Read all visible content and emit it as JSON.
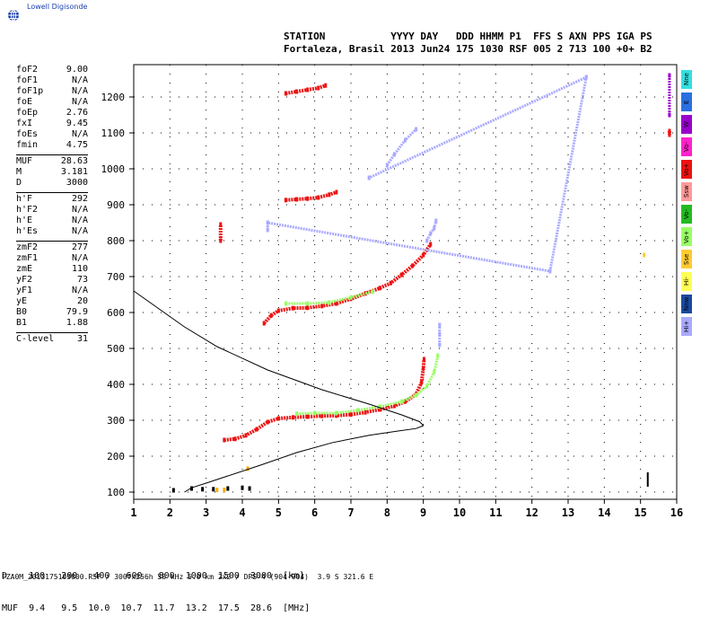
{
  "brand": {
    "logo_text": "Lowell Digisonde"
  },
  "header": {
    "line1": "STATION           YYYY DAY   DDD HHMM P1  FFS S AXN PPS IGA PS",
    "line2": "Fortaleza, Brasil 2013 Jun24 175 1030 RSF 005 2 713 100 +0+ B2"
  },
  "params": [
    {
      "label": "foF2",
      "value": "9.00"
    },
    {
      "label": "foF1",
      "value": "N/A"
    },
    {
      "label": "foF1p",
      "value": "N/A"
    },
    {
      "label": "foE",
      "value": "N/A"
    },
    {
      "label": "foEp",
      "value": "2.76"
    },
    {
      "label": "fxI",
      "value": "9.45"
    },
    {
      "label": "foEs",
      "value": "N/A"
    },
    {
      "label": "fmin",
      "value": "4.75"
    },
    {
      "sep": true
    },
    {
      "label": "MUF",
      "value": "28.63"
    },
    {
      "label": "M",
      "value": "3.181"
    },
    {
      "label": "D",
      "value": "3000"
    },
    {
      "sep": true
    },
    {
      "label": "h'F",
      "value": "292"
    },
    {
      "label": "h'F2",
      "value": "N/A"
    },
    {
      "label": "h'E",
      "value": "N/A"
    },
    {
      "label": "h'Es",
      "value": "N/A"
    },
    {
      "sep": true
    },
    {
      "label": "zmF2",
      "value": "277"
    },
    {
      "label": "zmF1",
      "value": "N/A"
    },
    {
      "label": "zmE",
      "value": "110"
    },
    {
      "label": "yF2",
      "value": "73"
    },
    {
      "label": "yF1",
      "value": "N/A"
    },
    {
      "label": "yE",
      "value": "20"
    },
    {
      "label": "B0",
      "value": "79.9"
    },
    {
      "label": "B1",
      "value": "1.88"
    },
    {
      "sep": true
    },
    {
      "label": "C-level",
      "value": "31"
    }
  ],
  "legend": [
    {
      "label": "Nne",
      "color": "#33e0e0"
    },
    {
      "label": "E",
      "color": "#2a70e0"
    },
    {
      "label": "W",
      "color": "#9900cc"
    },
    {
      "label": "Vo-",
      "color": "#ff22cc"
    },
    {
      "label": "Vo+",
      "color": "#ee1111"
    },
    {
      "label": "Ssw",
      "color": "#ff9999"
    },
    {
      "label": "Vo-",
      "color": "#22bb22"
    },
    {
      "label": "Vo+",
      "color": "#99ff66"
    },
    {
      "label": "Sse",
      "color": "#ffcc33"
    },
    {
      "label": "Hi-",
      "color": "#ffff55"
    },
    {
      "label": "Nnw",
      "color": "#1a4aa0"
    },
    {
      "label": "Hi+",
      "color": "#aaaaff"
    }
  ],
  "muf_table": {
    "line1": "D    100   200   400   600   800  1000  1500  3000  [km]",
    "line2": "MUF  9.4   9.5  10.0  10.7  11.7  13.2  17.5  28.6  [MHz]"
  },
  "footer": "FZA0M_2013175103000.RSF / 300fx256h 50 kHz 5.0 km 2x2 / DPS-4 (904-904)  3.9 S 321.6 E",
  "chart_data": {
    "type": "scatter",
    "title": "",
    "xlabel": "",
    "ylabel": "",
    "xlim": [
      1,
      16
    ],
    "ylim": [
      80,
      1290
    ],
    "x_ticks": [
      1,
      2,
      3,
      4,
      5,
      6,
      7,
      8,
      9,
      10,
      11,
      12,
      13,
      14,
      15,
      16
    ],
    "y_ticks": [
      100,
      200,
      300,
      400,
      500,
      600,
      700,
      800,
      900,
      1000,
      1100,
      1200
    ],
    "grid": true,
    "series": [
      {
        "color": "#ee1111",
        "points": [
          [
            3.5,
            245
          ],
          [
            3.8,
            248
          ],
          [
            4.1,
            258
          ],
          [
            4.4,
            275
          ],
          [
            4.7,
            295
          ],
          [
            5.0,
            305
          ],
          [
            5.4,
            308
          ],
          [
            5.8,
            310
          ],
          [
            6.2,
            312
          ],
          [
            6.6,
            313
          ],
          [
            7.0,
            316
          ],
          [
            7.4,
            322
          ],
          [
            7.8,
            330
          ],
          [
            8.2,
            340
          ],
          [
            8.5,
            352
          ],
          [
            8.8,
            372
          ],
          [
            8.95,
            405
          ],
          [
            9.0,
            445
          ],
          [
            9.02,
            470
          ]
        ]
      },
      {
        "color": "#99ff66",
        "points": [
          [
            5.5,
            318
          ],
          [
            6.0,
            320
          ],
          [
            6.6,
            320
          ],
          [
            7.2,
            328
          ],
          [
            7.8,
            338
          ],
          [
            8.4,
            352
          ],
          [
            8.8,
            370
          ],
          [
            9.1,
            395
          ],
          [
            9.3,
            435
          ],
          [
            9.4,
            480
          ]
        ]
      },
      {
        "color": "#aaaaff",
        "points": [
          [
            9.45,
            510
          ],
          [
            9.45,
            540
          ],
          [
            9.45,
            565
          ]
        ]
      },
      {
        "color": "#ee1111",
        "points": [
          [
            4.6,
            570
          ],
          [
            4.8,
            592
          ],
          [
            5.0,
            605
          ],
          [
            5.4,
            612
          ],
          [
            5.8,
            613
          ],
          [
            6.2,
            618
          ],
          [
            6.6,
            625
          ],
          [
            7.0,
            638
          ],
          [
            7.4,
            653
          ],
          [
            7.8,
            668
          ],
          [
            8.1,
            682
          ],
          [
            8.4,
            705
          ],
          [
            8.7,
            730
          ],
          [
            9.0,
            760
          ],
          [
            9.2,
            790
          ]
        ]
      },
      {
        "color": "#99ff66",
        "points": [
          [
            5.2,
            625
          ],
          [
            5.8,
            625
          ],
          [
            6.4,
            628
          ],
          [
            7.0,
            642
          ],
          [
            7.6,
            658
          ]
        ]
      },
      {
        "color": "#aaaaff",
        "points": [
          [
            9.1,
            800
          ],
          [
            9.2,
            820
          ],
          [
            9.3,
            835
          ],
          [
            9.35,
            855
          ]
        ]
      },
      {
        "color": "#ee1111",
        "points": [
          [
            5.2,
            913
          ],
          [
            5.5,
            915
          ],
          [
            5.8,
            917
          ],
          [
            6.1,
            920
          ],
          [
            6.4,
            928
          ],
          [
            6.6,
            935
          ]
        ]
      },
      {
        "color": "#ee1111",
        "points": [
          [
            5.2,
            1210
          ],
          [
            5.5,
            1215
          ],
          [
            5.8,
            1220
          ],
          [
            6.1,
            1225
          ],
          [
            6.3,
            1232
          ]
        ]
      },
      {
        "color": "#aaaaff",
        "points": [
          [
            8.0,
            1010
          ],
          [
            8.2,
            1040
          ],
          [
            8.5,
            1080
          ],
          [
            8.8,
            1110
          ]
        ]
      },
      {
        "color": "#ee1111",
        "points": [
          [
            3.4,
            800
          ],
          [
            3.4,
            845
          ]
        ]
      },
      {
        "color": "#aaaaff",
        "points": [
          [
            4.7,
            830
          ],
          [
            4.7,
            850
          ],
          [
            12.5,
            715
          ],
          [
            13.5,
            1255
          ],
          [
            7.5,
            975
          ]
        ]
      },
      {
        "color": "#000000",
        "points": [
          [
            2.1,
            105
          ],
          [
            2.6,
            110
          ],
          [
            2.9,
            108
          ],
          [
            3.2,
            108
          ],
          [
            3.6,
            110
          ],
          [
            4.0,
            112
          ],
          [
            4.2,
            110
          ]
        ]
      },
      {
        "color": "#ffaa00",
        "points": [
          [
            3.3,
            106
          ],
          [
            3.5,
            106
          ],
          [
            4.15,
            165
          ]
        ]
      },
      {
        "color": "#ee1111",
        "points": [
          [
            15.8,
            1105
          ],
          [
            15.8,
            1095
          ]
        ]
      },
      {
        "color": "#9900cc",
        "points": [
          [
            15.8,
            1150
          ],
          [
            15.8,
            1260
          ]
        ]
      },
      {
        "color": "#ffcc33",
        "points": [
          [
            15.1,
            760
          ]
        ]
      }
    ],
    "profile": {
      "color": "#000000",
      "points": [
        [
          2.4,
          100
        ],
        [
          2.6,
          112
        ],
        [
          3.0,
          125
        ],
        [
          3.6,
          145
        ],
        [
          4.5,
          175
        ],
        [
          5.5,
          210
        ],
        [
          6.5,
          238
        ],
        [
          7.5,
          258
        ],
        [
          8.3,
          270
        ],
        [
          8.8,
          277
        ],
        [
          9.0,
          285
        ],
        [
          8.9,
          296
        ],
        [
          8.4,
          315
        ],
        [
          7.5,
          345
        ],
        [
          6.2,
          385
        ],
        [
          4.7,
          440
        ],
        [
          3.3,
          505
        ],
        [
          2.4,
          560
        ],
        [
          1.7,
          610
        ],
        [
          1.0,
          660
        ]
      ]
    }
  }
}
